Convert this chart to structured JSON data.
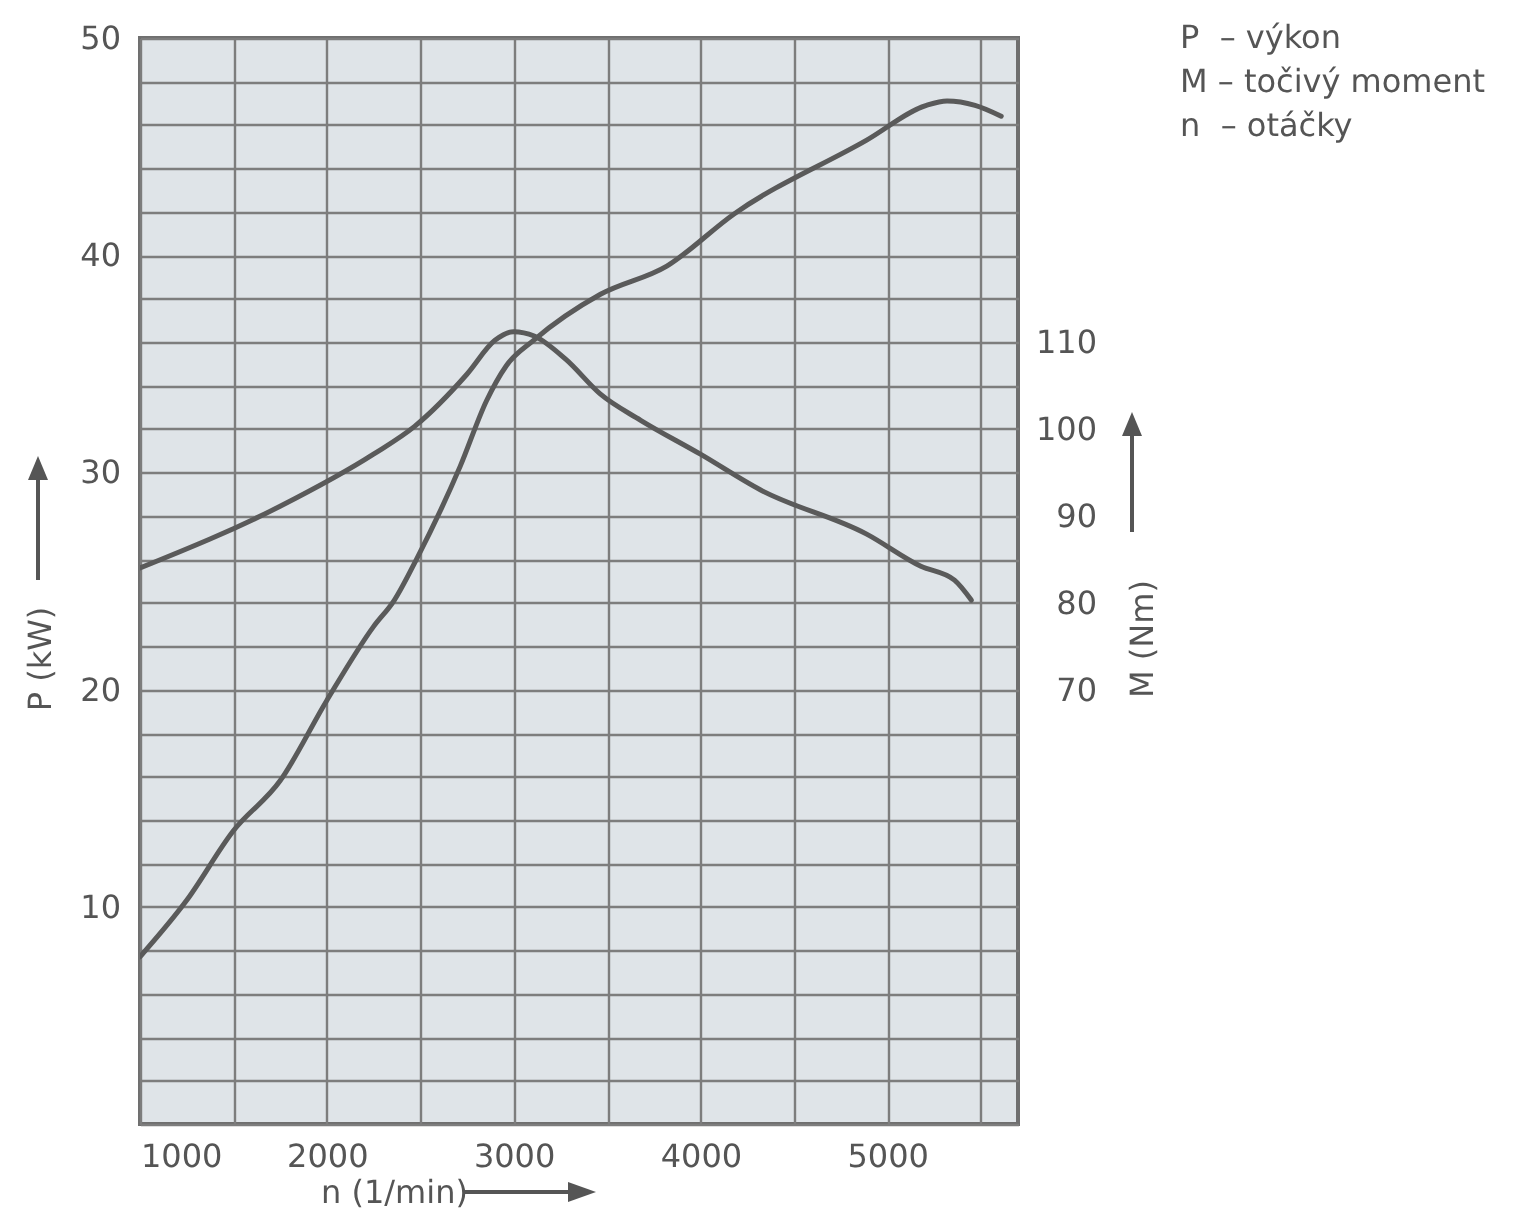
{
  "chart_data": {
    "type": "line",
    "xlabel": "n (1/min)",
    "ylabel": "P (kW)",
    "y2label": "M (Nm)",
    "annotations": [
      "P  – výkon",
      "M – točivý moment",
      "n  – otáčky"
    ],
    "xlim": [
      1000,
      5700
    ],
    "xticks": [
      1000,
      2000,
      3000,
      4000,
      5000
    ],
    "ylim": [
      0,
      50
    ],
    "yticks": [
      10,
      20,
      30,
      40,
      50
    ],
    "y2lim": [
      20,
      145
    ],
    "y2ticks": [
      70,
      80,
      90,
      100,
      110
    ],
    "grid": true,
    "series": [
      {
        "color": "#5a5a5a",
        "x": [
          1000,
          1250,
          1500,
          1750,
          2000,
          2250,
          2360,
          2480,
          2715,
          2855,
          2960,
          3110,
          3465,
          3820,
          4180,
          4890,
          5210,
          5320,
          5470,
          5610
        ],
        "values": [
          7.7,
          10.3,
          13.5,
          15.8,
          19.5,
          22.9,
          24.1,
          26,
          30.3,
          33.3,
          34.9,
          36.1,
          38.2,
          39.5,
          41.9,
          45.3,
          46.9,
          47.1,
          46.9,
          46.4
        ]
      },
      {
        "color": "#5a5a5a",
        "axis": "y2",
        "x": [
          1000,
          1750,
          2250,
          2470,
          2750,
          2900,
          3000,
          3110,
          3280,
          3465,
          3680,
          4000,
          4320,
          4890,
          5180,
          5360,
          5450
        ],
        "values": [
          84,
          91.1,
          97.1,
          100.3,
          106.3,
          110.2,
          111.2,
          110.7,
          108,
          104,
          101,
          97.1,
          93,
          87.9,
          84.2,
          82.6,
          80.3
        ]
      }
    ]
  }
}
